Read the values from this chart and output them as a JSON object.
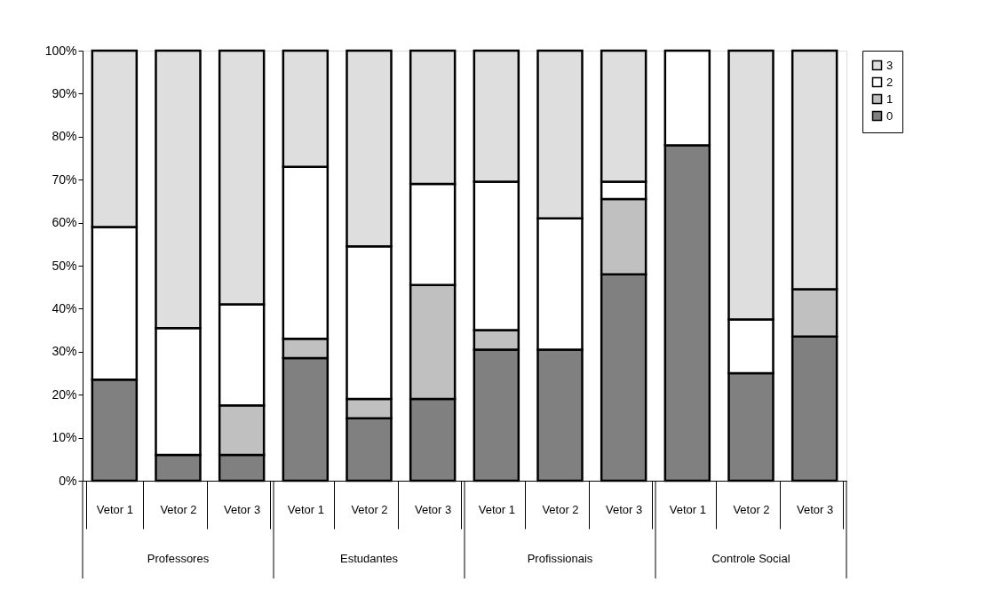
{
  "chart_data": {
    "type": "bar",
    "stacked": true,
    "categories": [
      "Vetor 1",
      "Vetor 2",
      "Vetor 3",
      "Vetor 1",
      "Vetor 2",
      "Vetor 3",
      "Vetor 1",
      "Vetor 2",
      "Vetor 3",
      "Vetor 1",
      "Vetor 2",
      "Vetor 3"
    ],
    "series": [
      {
        "name": "0",
        "color": "#808080",
        "values": [
          23.5,
          6,
          6,
          28.5,
          14.5,
          19,
          30.5,
          30.5,
          48,
          78,
          25,
          33.5
        ]
      },
      {
        "name": "1",
        "color": "#c0c0c0",
        "values": [
          null,
          null,
          11.5,
          4.5,
          4.5,
          26.5,
          4.5,
          null,
          17.5,
          null,
          null,
          11
        ]
      },
      {
        "name": "2",
        "color": "#ffffff",
        "values": [
          35.5,
          29.5,
          23.5,
          40,
          35.5,
          23.5,
          34.5,
          30.5,
          4,
          22,
          12.5,
          null
        ]
      },
      {
        "name": "3",
        "color": "#dedede",
        "values": [
          41,
          64.5,
          59,
          27,
          45.5,
          31,
          30.5,
          39,
          30.5,
          null,
          62.5,
          55.5
        ]
      }
    ],
    "ylim": [
      0,
      100
    ],
    "yticks": [
      {
        "value": 0,
        "label": "0%"
      },
      {
        "value": 10,
        "label": "10%"
      },
      {
        "value": 20,
        "label": "20%"
      },
      {
        "value": 30,
        "label": "30%"
      },
      {
        "value": 40,
        "label": "40%"
      },
      {
        "value": 50,
        "label": "50%"
      },
      {
        "value": 60,
        "label": "60%"
      },
      {
        "value": 70,
        "label": "70%"
      },
      {
        "value": 80,
        "label": "80%"
      },
      {
        "value": 90,
        "label": "90%"
      },
      {
        "value": 100,
        "label": "100%"
      }
    ],
    "annotations": [
      "Professores",
      "Estudantes",
      "Profissionais",
      "Controle Social"
    ],
    "legend": "right",
    "grid": false
  }
}
